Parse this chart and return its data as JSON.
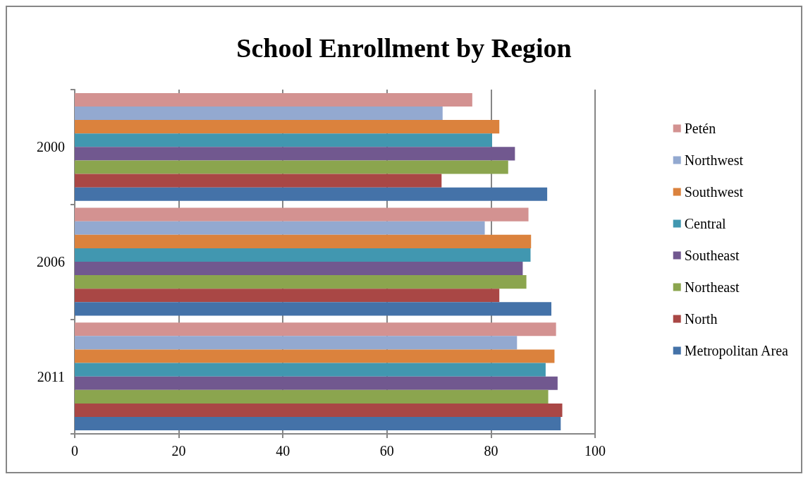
{
  "chart_data": {
    "type": "bar",
    "orientation": "horizontal",
    "title": "School Enrollment by Region",
    "categories": [
      "2000",
      "2006",
      "2011"
    ],
    "series": [
      {
        "name": "Metropolitan Area",
        "color": "#4472a8",
        "values": [
          90.8,
          91.6,
          93.4
        ]
      },
      {
        "name": "North",
        "color": "#a94745",
        "values": [
          70.5,
          81.6,
          93.7
        ]
      },
      {
        "name": "Northeast",
        "color": "#8ba54e",
        "values": [
          83.3,
          86.8,
          91.0
        ]
      },
      {
        "name": "Southeast",
        "color": "#71588f",
        "values": [
          84.6,
          86.1,
          92.8
        ]
      },
      {
        "name": "Central",
        "color": "#4197b0",
        "values": [
          80.2,
          87.6,
          90.5
        ]
      },
      {
        "name": "Southwest",
        "color": "#db823d",
        "values": [
          81.6,
          87.7,
          92.2
        ]
      },
      {
        "name": "Northwest",
        "color": "#93a9d0",
        "values": [
          70.7,
          78.8,
          85.0
        ]
      },
      {
        "name": "Petén",
        "color": "#d39291",
        "values": [
          76.4,
          87.2,
          92.5
        ]
      }
    ],
    "xlim": [
      0,
      100
    ],
    "xticks": [
      0,
      20,
      40,
      60,
      80,
      100
    ],
    "grid": "x",
    "legend": "right"
  }
}
